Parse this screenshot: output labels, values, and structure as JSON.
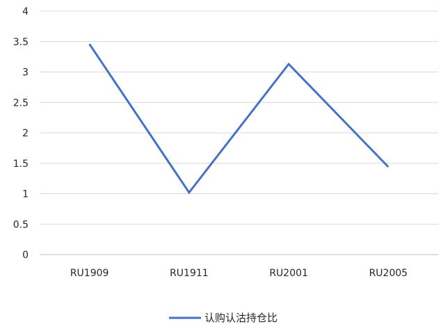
{
  "chart_data": {
    "type": "line",
    "categories": [
      "RU1909",
      "RU1911",
      "RU2001",
      "RU2005"
    ],
    "series": [
      {
        "name": "认购认沽持仓比",
        "values": [
          3.46,
          1.02,
          3.13,
          1.44
        ],
        "color": "#4472c4"
      }
    ],
    "y_ticks": [
      "0",
      "0.5",
      "1",
      "1.5",
      "2",
      "2.5",
      "3",
      "3.5",
      "4"
    ],
    "ylim": [
      0,
      4
    ],
    "grid": true,
    "legend_position": "bottom-center",
    "gridline_color": "#d9d9d9",
    "axis_line_color": "#bfbfbf"
  }
}
